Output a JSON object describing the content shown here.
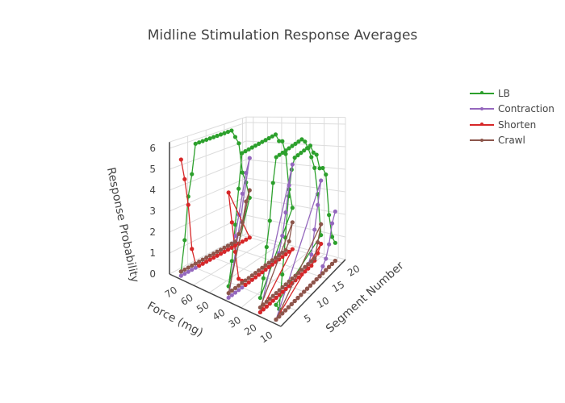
{
  "chart_data": {
    "type": "scatter3d-lines",
    "title": "Midline Stimulation Response Averages",
    "axes": {
      "x": {
        "label": "Force (mg)",
        "ticks": [
          10,
          20,
          30,
          40,
          50,
          60,
          70
        ],
        "range": [
          5,
          75
        ]
      },
      "y": {
        "label": "Segment Number",
        "ticks": [
          5,
          10,
          15,
          20
        ],
        "range": [
          0,
          21
        ]
      },
      "z": {
        "label": "Response Probability",
        "ticks": [
          0,
          1,
          2,
          3,
          4,
          5,
          6
        ],
        "range": [
          0,
          6.3
        ]
      }
    },
    "grid": true,
    "legend_position": "top-right",
    "segments": [
      1,
      2,
      3,
      4,
      5,
      6,
      7,
      8,
      9,
      10,
      11,
      12,
      13,
      14,
      15,
      16,
      17,
      18,
      19,
      20
    ],
    "forces": [
      70,
      40,
      20,
      10
    ],
    "series": [
      {
        "name": "LB",
        "color": "#2ca02c",
        "values": {
          "70": [
            0.2,
            1.6,
            3.6,
            4.6,
            6,
            6,
            6,
            6,
            6,
            6,
            6,
            6,
            6,
            6,
            6,
            5.6,
            5.2,
            3.6,
            3.0,
            2.1
          ],
          "40": [
            0.5,
            1.5,
            3,
            4.5,
            6,
            6,
            6,
            6,
            6,
            6,
            6,
            6,
            6,
            6,
            6,
            5.6,
            5.5,
            4.8,
            3,
            2
          ],
          "20": [
            0.6,
            1.3,
            2.5,
            3.5,
            5,
            6,
            6,
            6,
            6,
            6,
            6,
            6,
            6,
            6,
            5.8,
            5.4,
            4.9,
            4.3,
            3.0,
            1.0
          ],
          "10": [
            0.6,
            0.3,
            1.6,
            3.0,
            4.6,
            5.6,
            6,
            6,
            6,
            6,
            6,
            6,
            5.6,
            5.4,
            4.7,
            4.6,
            4.2,
            2.3,
            1.2,
            0.8
          ]
        }
      },
      {
        "name": "Contraction",
        "color": "#9467bd",
        "values": {
          "70": [
            0,
            0,
            0,
            0,
            0,
            0,
            0,
            0,
            0,
            0,
            0,
            0,
            0,
            0,
            0,
            0.5,
            1.5,
            2.5,
            3.5,
            4.2
          ],
          "40": [
            0,
            0,
            0,
            0,
            0,
            0,
            0,
            0,
            0,
            0,
            0,
            0,
            0,
            0,
            0,
            0.3,
            1.0,
            2.0,
            3.2,
            4.1
          ],
          "20": [
            0,
            0,
            0,
            0,
            0,
            0,
            0,
            0,
            0,
            0,
            0,
            0,
            0,
            0,
            0,
            0.2,
            0.5,
            1.5,
            2.5,
            3.5
          ],
          "10": [
            0,
            0,
            0,
            0,
            0,
            0,
            0,
            0,
            0,
            0,
            0,
            0,
            0,
            0,
            0,
            0.3,
            0.5,
            1.0,
            1.8,
            2.2
          ]
        }
      },
      {
        "name": "Shorten",
        "color": "#d62728",
        "values": {
          "70": [
            5.5,
            4.5,
            3.2,
            1.0,
            0.2,
            0,
            0,
            0,
            0,
            0,
            0,
            0,
            0,
            0,
            0,
            0,
            0,
            0,
            0,
            0
          ],
          "40": [
            4.6,
            3.2,
            1.8,
            0.5,
            0.3,
            0,
            0,
            0,
            0,
            0,
            0,
            0,
            0,
            0,
            0,
            0,
            0,
            0,
            0,
            0
          ],
          "20": [
            0,
            0,
            0,
            0,
            0,
            0,
            0,
            0,
            0,
            0,
            0,
            0,
            0,
            0,
            0,
            0,
            0,
            0.1,
            0.3,
            0.6
          ],
          "10": [
            0,
            0,
            0,
            0,
            0,
            0,
            0,
            0,
            0,
            0,
            0,
            0,
            0,
            0,
            0,
            0,
            0,
            0,
            0,
            0
          ]
        }
      },
      {
        "name": "Crawl",
        "color": "#8c564b",
        "values": {
          "70": [
            0.2,
            0.2,
            0.2,
            0.2,
            0.2,
            0.2,
            0.2,
            0.2,
            0.2,
            0.2,
            0.2,
            0.2,
            0.2,
            0.2,
            0.2,
            0.2,
            0.5,
            1,
            2,
            2.5
          ],
          "40": [
            0.2,
            0.2,
            0.2,
            0.2,
            0.2,
            0.2,
            0.2,
            0.2,
            0.2,
            0.2,
            0.2,
            0.2,
            0.2,
            0.2,
            0.2,
            0.2,
            0.2,
            0.2,
            0.5,
            1.3
          ],
          "20": [
            0.2,
            0.2,
            0.2,
            0.2,
            0.2,
            0.2,
            0.2,
            0.2,
            0.2,
            0.2,
            0.2,
            0.2,
            0.2,
            0.2,
            0.2,
            0.2,
            0.2,
            0.2,
            0.8,
            1.5
          ],
          "10": [
            0,
            0,
            0,
            0,
            0,
            0,
            0,
            0,
            0,
            0,
            0,
            0,
            0,
            0,
            0,
            0,
            0,
            0,
            0,
            0
          ]
        }
      }
    ]
  }
}
